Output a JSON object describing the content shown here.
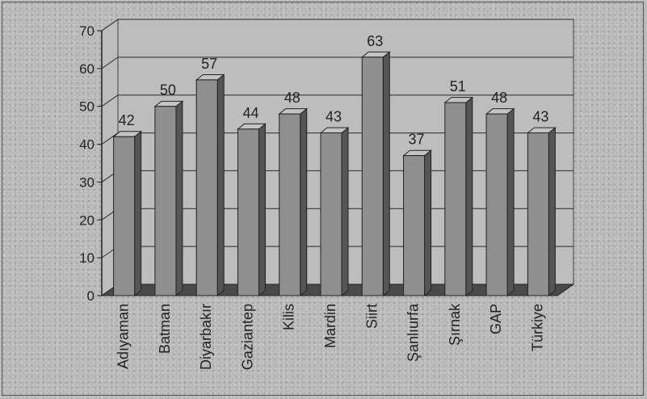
{
  "chart_data": {
    "type": "bar",
    "categories": [
      "Adıyaman",
      "Batman",
      "Diyarbakır",
      "Gaziantep",
      "Kilis",
      "Mardin",
      "Siirt",
      "Şanlıurfa",
      "Şırnak",
      "GAP",
      "Türkiye"
    ],
    "values": [
      42,
      50,
      57,
      44,
      48,
      43,
      63,
      37,
      51,
      48,
      43
    ],
    "data_labels": [
      "42",
      "50",
      "57",
      "44",
      "48",
      "43",
      "63",
      "37",
      "51",
      "48",
      "43"
    ],
    "title": "",
    "xlabel": "",
    "ylabel": "",
    "ylim": [
      0,
      70
    ],
    "yticks": [
      "0",
      "10",
      "20",
      "30",
      "40",
      "50",
      "60",
      "70"
    ],
    "grid": true,
    "style": "3d-columns",
    "colors": {
      "bar_front": "#8f8f8f",
      "bar_side": "#555555",
      "bar_top": "#c4c4c4",
      "wall": "#bdbdbd",
      "gridline": "#2a2a2a",
      "floor": "#4a4a4a"
    }
  }
}
